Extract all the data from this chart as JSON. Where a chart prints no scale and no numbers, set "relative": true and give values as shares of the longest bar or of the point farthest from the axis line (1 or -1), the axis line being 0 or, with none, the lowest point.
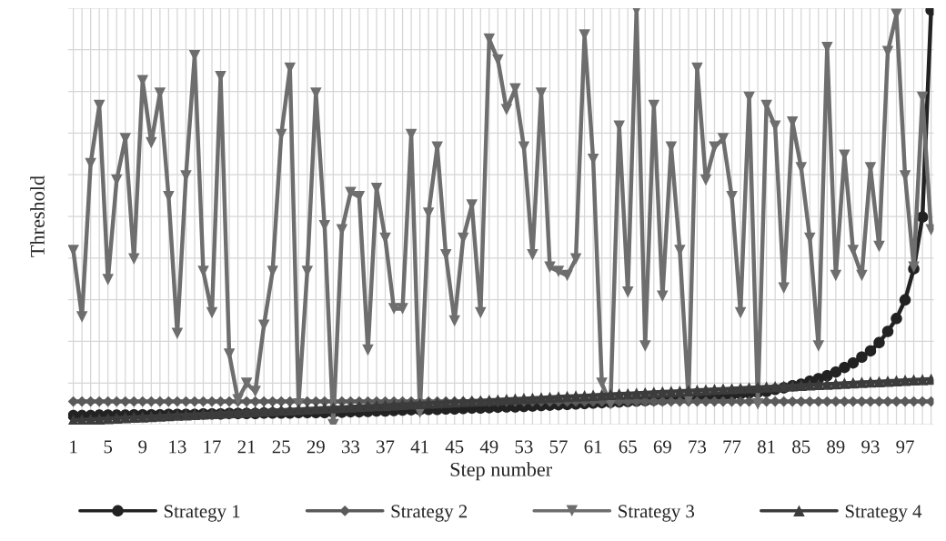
{
  "chart_data": {
    "type": "line",
    "xlabel": "Step number",
    "ylabel": "Threshold",
    "relative": true,
    "grid": true,
    "legend": "bottom",
    "categories": [
      "1",
      null,
      null,
      null,
      "5",
      null,
      null,
      null,
      "9",
      null,
      null,
      null,
      "13",
      null,
      null,
      null,
      "17",
      null,
      null,
      null,
      "21",
      null,
      null,
      null,
      "25",
      null,
      null,
      null,
      "29",
      null,
      null,
      null,
      "33",
      null,
      null,
      null,
      "37",
      null,
      null,
      null,
      "41",
      null,
      null,
      null,
      "45",
      null,
      null,
      null,
      "49",
      null,
      null,
      null,
      "53",
      null,
      null,
      null,
      "57",
      null,
      null,
      null,
      "61",
      null,
      null,
      null,
      "65",
      null,
      null,
      null,
      "69",
      null,
      null,
      null,
      "73",
      null,
      null,
      null,
      "77",
      null,
      null,
      null,
      "81",
      null,
      null,
      null,
      "85",
      null,
      null,
      null,
      "89",
      null,
      null,
      null,
      "93",
      null,
      null,
      null,
      "97",
      null,
      null,
      null
    ],
    "series": [
      {
        "name": "Strategy 1",
        "color": "#222222",
        "marker": "circle",
        "values": [
          0.022,
          0.022,
          0.022,
          0.023,
          0.023,
          0.023,
          0.023,
          0.024,
          0.024,
          0.024,
          0.024,
          0.025,
          0.025,
          0.025,
          0.025,
          0.026,
          0.026,
          0.026,
          0.027,
          0.027,
          0.027,
          0.027,
          0.028,
          0.028,
          0.028,
          0.028,
          0.029,
          0.029,
          0.029,
          0.029,
          0.03,
          0.03,
          0.031,
          0.031,
          0.032,
          0.033,
          0.033,
          0.034,
          0.035,
          0.036,
          0.036,
          0.037,
          0.037,
          0.038,
          0.038,
          0.039,
          0.04,
          0.04,
          0.041,
          0.042,
          0.043,
          0.043,
          0.044,
          0.045,
          0.046,
          0.047,
          0.048,
          0.049,
          0.05,
          0.051,
          0.052,
          0.053,
          0.054,
          0.055,
          0.056,
          0.057,
          0.058,
          0.059,
          0.06,
          0.062,
          0.063,
          0.064,
          0.066,
          0.067,
          0.069,
          0.07,
          0.072,
          0.074,
          0.076,
          0.078,
          0.08,
          0.085,
          0.089,
          0.094,
          0.098,
          0.105,
          0.111,
          0.118,
          0.127,
          0.138,
          0.149,
          0.163,
          0.178,
          0.198,
          0.225,
          0.256,
          0.301,
          0.376,
          0.501,
          1.0
        ]
      },
      {
        "name": "Strategy 2",
        "color": "#5a5a5a",
        "marker": "diamond",
        "values": [
          0.056,
          0.056,
          0.056,
          0.056,
          0.056,
          0.056,
          0.056,
          0.056,
          0.056,
          0.056,
          0.056,
          0.056,
          0.056,
          0.056,
          0.056,
          0.056,
          0.056,
          0.056,
          0.056,
          0.056,
          0.056,
          0.056,
          0.056,
          0.056,
          0.056,
          0.056,
          0.056,
          0.056,
          0.056,
          0.056,
          0.056,
          0.056,
          0.056,
          0.056,
          0.056,
          0.056,
          0.056,
          0.056,
          0.056,
          0.056,
          0.056,
          0.056,
          0.056,
          0.056,
          0.056,
          0.056,
          0.056,
          0.056,
          0.056,
          0.056,
          0.056,
          0.056,
          0.056,
          0.056,
          0.056,
          0.056,
          0.056,
          0.056,
          0.056,
          0.056,
          0.056,
          0.056,
          0.056,
          0.056,
          0.056,
          0.056,
          0.056,
          0.056,
          0.056,
          0.056,
          0.056,
          0.056,
          0.056,
          0.056,
          0.056,
          0.056,
          0.056,
          0.056,
          0.056,
          0.056,
          0.056,
          0.056,
          0.056,
          0.056,
          0.056,
          0.056,
          0.056,
          0.056,
          0.056,
          0.056,
          0.056,
          0.056,
          0.056,
          0.056,
          0.056,
          0.056,
          0.056,
          0.056,
          0.056,
          0.056
        ]
      },
      {
        "name": "Strategy 3",
        "color": "#6e6e6e",
        "marker": "triangle_down",
        "values": [
          0.42,
          0.26,
          0.63,
          0.77,
          0.35,
          0.59,
          0.69,
          0.4,
          0.83,
          0.68,
          0.8,
          0.55,
          0.22,
          0.6,
          0.89,
          0.37,
          0.27,
          0.84,
          0.17,
          0.06,
          0.1,
          0.08,
          0.24,
          0.37,
          0.7,
          0.86,
          0.05,
          0.37,
          0.8,
          0.48,
          0.0,
          0.47,
          0.56,
          0.55,
          0.18,
          0.57,
          0.45,
          0.28,
          0.28,
          0.7,
          0.03,
          0.51,
          0.67,
          0.41,
          0.25,
          0.45,
          0.53,
          0.27,
          0.93,
          0.88,
          0.76,
          0.81,
          0.67,
          0.41,
          0.8,
          0.38,
          0.37,
          0.36,
          0.4,
          0.94,
          0.64,
          0.1,
          0.05,
          0.72,
          0.32,
          1.0,
          0.19,
          0.77,
          0.31,
          0.67,
          0.42,
          0.06,
          0.86,
          0.59,
          0.67,
          0.69,
          0.55,
          0.27,
          0.79,
          0.05,
          0.77,
          0.72,
          0.33,
          0.73,
          0.62,
          0.45,
          0.19,
          0.91,
          0.36,
          0.65,
          0.42,
          0.36,
          0.62,
          0.43,
          0.9,
          0.99,
          0.6,
          0.38,
          0.79,
          0.47
        ]
      },
      {
        "name": "Strategy 4",
        "color": "#3c3c3c",
        "marker": "triangle",
        "values": [
          0.011,
          0.012,
          0.013,
          0.014,
          0.015,
          0.016,
          0.017,
          0.018,
          0.019,
          0.02,
          0.021,
          0.022,
          0.023,
          0.024,
          0.025,
          0.026,
          0.027,
          0.028,
          0.029,
          0.03,
          0.031,
          0.032,
          0.033,
          0.034,
          0.035,
          0.036,
          0.037,
          0.038,
          0.039,
          0.04,
          0.041,
          0.042,
          0.043,
          0.044,
          0.045,
          0.046,
          0.047,
          0.048,
          0.049,
          0.05,
          0.051,
          0.052,
          0.053,
          0.054,
          0.055,
          0.056,
          0.057,
          0.058,
          0.059,
          0.06,
          0.061,
          0.062,
          0.063,
          0.064,
          0.065,
          0.066,
          0.067,
          0.068,
          0.069,
          0.07,
          0.071,
          0.072,
          0.073,
          0.074,
          0.075,
          0.076,
          0.077,
          0.078,
          0.079,
          0.08,
          0.081,
          0.082,
          0.083,
          0.084,
          0.085,
          0.086,
          0.087,
          0.088,
          0.089,
          0.09,
          0.091,
          0.092,
          0.093,
          0.094,
          0.095,
          0.096,
          0.097,
          0.098,
          0.099,
          0.1,
          0.101,
          0.102,
          0.103,
          0.104,
          0.105,
          0.106,
          0.107,
          0.108,
          0.109,
          0.11
        ]
      }
    ]
  }
}
